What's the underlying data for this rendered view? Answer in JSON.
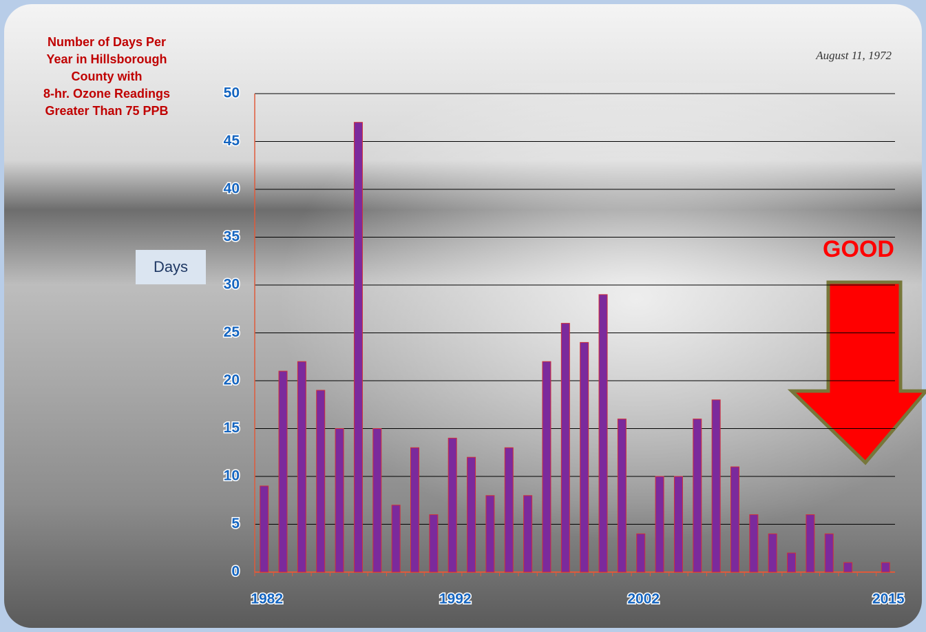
{
  "chart_data": {
    "type": "bar",
    "title": [
      "Number of Days Per",
      "Year in Hillsborough",
      "County with",
      "8-hr. Ozone Readings",
      "Greater Than 75 PPB"
    ],
    "photo_caption": "August 11, 1972",
    "y_label": "Days",
    "annotation": "GOOD",
    "categories": [
      "1982",
      null,
      null,
      null,
      null,
      null,
      null,
      null,
      null,
      null,
      "1992",
      null,
      null,
      null,
      null,
      null,
      null,
      null,
      null,
      null,
      "2002",
      null,
      null,
      null,
      null,
      null,
      null,
      null,
      null,
      null,
      null,
      null,
      null,
      "2015"
    ],
    "values": [
      9,
      21,
      22,
      19,
      15,
      47,
      15,
      7,
      13,
      6,
      14,
      12,
      8,
      13,
      8,
      22,
      26,
      24,
      29,
      16,
      4,
      10,
      10,
      16,
      18,
      11,
      6,
      4,
      2,
      6,
      4,
      1,
      0,
      1
    ],
    "color": "#7b2a9c",
    "ylim": [
      0,
      50
    ],
    "yticks": [
      0,
      5,
      10,
      15,
      20,
      25,
      30,
      35,
      40,
      45,
      50
    ],
    "grid": true
  }
}
